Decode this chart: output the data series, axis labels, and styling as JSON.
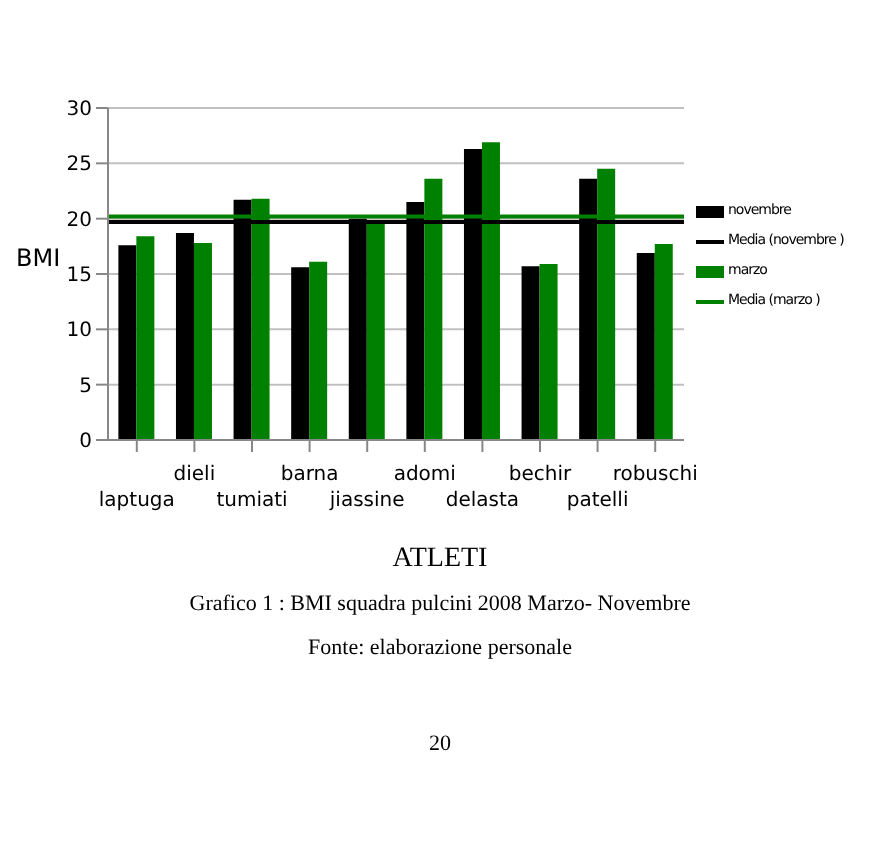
{
  "chart_data": {
    "type": "bar",
    "ylabel": "BMI",
    "xlabel": "ATLETI",
    "categories": [
      "laptuga",
      "dieli",
      "tumiati",
      "barna",
      "jiassine",
      "adomi",
      "delasta",
      "bechir",
      "patelli",
      "robuschi"
    ],
    "series": [
      {
        "name": "novembre",
        "color": "#000000",
        "values": [
          17.6,
          18.7,
          21.7,
          15.6,
          20.0,
          21.5,
          26.3,
          15.7,
          23.6,
          16.9
        ]
      },
      {
        "name": "marzo",
        "color": "#008000",
        "values": [
          18.4,
          17.8,
          21.8,
          16.1,
          19.6,
          23.6,
          26.9,
          15.9,
          24.5,
          17.7
        ]
      }
    ],
    "ref_lines": [
      {
        "axis": "y",
        "value": 19.7,
        "label": "Media (novembre )",
        "color": "#000000"
      },
      {
        "axis": "y",
        "value": 20.2,
        "label": "Media (marzo )",
        "color": "#008000"
      }
    ],
    "ylim": [
      0,
      30
    ],
    "yticks": [
      0,
      5,
      10,
      15,
      20,
      25,
      30
    ],
    "grid": "y",
    "legend": "right",
    "annotations": [
      "Grafico 1 : BMI squadra pulcini 2008 Marzo- Novembre",
      "Fonte: elaborazione personale",
      "20"
    ]
  }
}
